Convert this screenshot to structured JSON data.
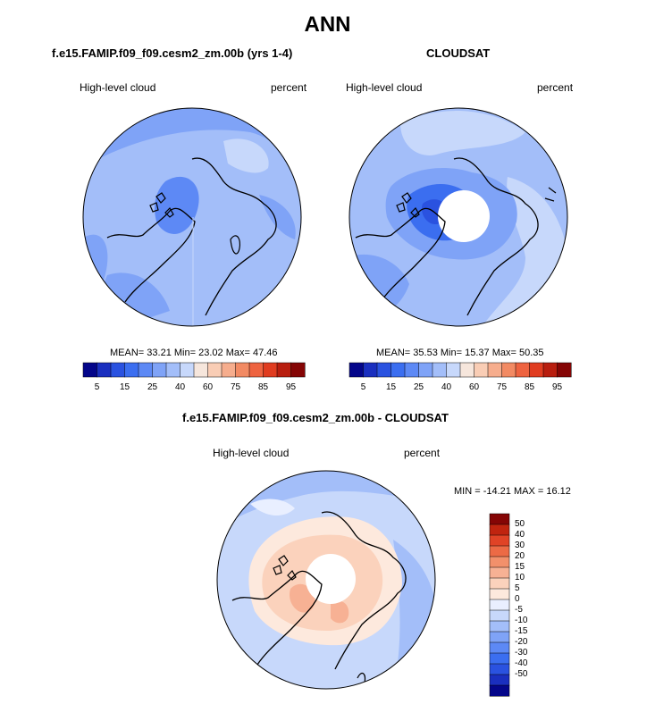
{
  "header": {
    "title": "ANN"
  },
  "colors": {
    "coast": "#000000",
    "ocean_missing": "#ffffff",
    "h_scale": [
      "#04068a",
      "#1a2fbf",
      "#2a52e0",
      "#3b6ef0",
      "#5d89f5",
      "#7fa3f7",
      "#a3bef9",
      "#c7d8fb",
      "#f6e6dc",
      "#f9cdb5",
      "#f6ad8d",
      "#f28a63",
      "#ee6340",
      "#e03c20",
      "#b81e0f",
      "#850505"
    ],
    "d_scale": [
      "#04068a",
      "#1a2fbf",
      "#2a52e0",
      "#3b6ef0",
      "#5d89f5",
      "#7fa3f7",
      "#a3bef9",
      "#c7d8fb",
      "#e9efff",
      "#fde9dd",
      "#fbd2bc",
      "#f7b194",
      "#f2906b",
      "#ec6a45",
      "#e04326",
      "#c0240f",
      "#850505"
    ]
  },
  "panels": {
    "left": {
      "title": "f.e15.FAMIP.f09_f09.cesm2_zm.00b (yrs 1-4)",
      "variable": "High-level cloud",
      "units": "percent",
      "mean_label": "MEAN=",
      "mean": "33.21",
      "min_label": "Min=",
      "min": "23.02",
      "max_label": "Max=",
      "max": "47.46"
    },
    "right": {
      "title": "CLOUDSAT",
      "variable": "High-level cloud",
      "units": "percent",
      "mean_label": "MEAN=",
      "mean": "35.53",
      "min_label": "Min=",
      "min": "15.37",
      "max_label": "Max=",
      "max": "50.35"
    },
    "diff": {
      "title": "f.e15.FAMIP.f09_f09.cesm2_zm.00b - CLOUDSAT",
      "variable": "High-level cloud",
      "units": "percent",
      "min_label": "MIN =",
      "min": "-14.21",
      "max_label": "MAX =",
      "max": "16.12"
    }
  },
  "chart_data": [
    {
      "type": "heatmap",
      "title": "f.e15.FAMIP.f09_f09.cesm2_zm.00b (yrs 1-4)",
      "projection": "north polar stereographic",
      "variable": "High-level cloud",
      "units": "percent",
      "colorbar_labels": [
        "5",
        "15",
        "25",
        "40",
        "60",
        "75",
        "85",
        "95"
      ],
      "stats": {
        "mean": 33.21,
        "min": 23.02,
        "max": 47.46
      }
    },
    {
      "type": "heatmap",
      "title": "CLOUDSAT",
      "projection": "north polar stereographic",
      "variable": "High-level cloud",
      "units": "percent",
      "colorbar_labels": [
        "5",
        "15",
        "25",
        "40",
        "60",
        "75",
        "85",
        "95"
      ],
      "stats": {
        "mean": 35.53,
        "min": 15.37,
        "max": 50.35
      }
    },
    {
      "type": "heatmap",
      "title": "f.e15.FAMIP.f09_f09.cesm2_zm.00b - CLOUDSAT",
      "projection": "north polar stereographic",
      "variable": "High-level cloud",
      "units": "percent",
      "colorbar_labels": [
        "50",
        "40",
        "30",
        "20",
        "15",
        "10",
        "5",
        "0",
        "-5",
        "-10",
        "-15",
        "-20",
        "-30",
        "-40",
        "-50"
      ],
      "stats": {
        "min": -14.21,
        "max": 16.12
      }
    }
  ]
}
